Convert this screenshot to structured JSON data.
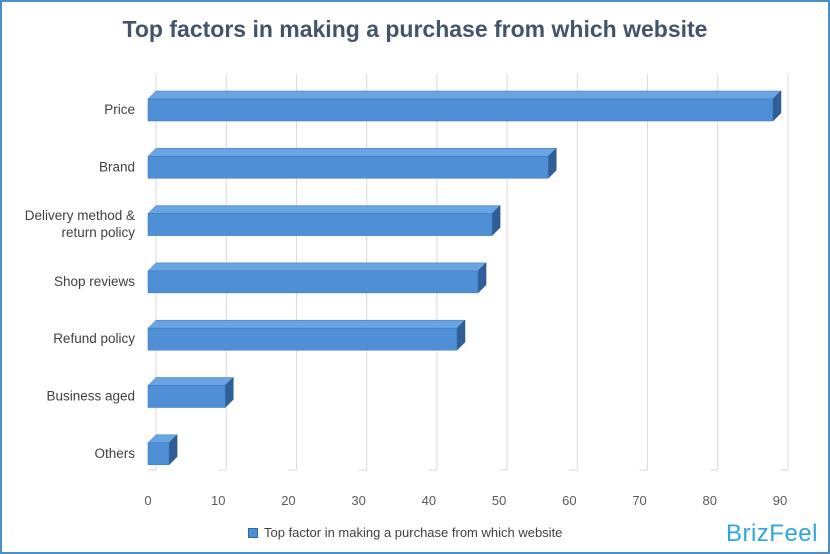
{
  "chart_data": {
    "type": "bar",
    "orientation": "horizontal",
    "title": "Top factors in making a purchase from which website",
    "categories": [
      "Price",
      "Brand",
      "Delivery method &\nreturn policy",
      "Shop reviews",
      "Refund policy",
      "Business aged",
      "Others"
    ],
    "series": [
      {
        "name": "Top factor in making a purchase from which website",
        "values": [
          89,
          57,
          49,
          47,
          44,
          11,
          3
        ]
      }
    ],
    "xlim": [
      0,
      90
    ],
    "xticks": [
      0,
      10,
      20,
      30,
      40,
      50,
      60,
      70,
      80,
      90
    ],
    "grid": true,
    "legend_position": "bottom",
    "colors": {
      "bar_front": "#4f8fd6",
      "bar_top": "#6aa5e3",
      "bar_side": "#2f5f96",
      "grid": "#d9d9d9"
    }
  },
  "brand": "BrizFeel"
}
